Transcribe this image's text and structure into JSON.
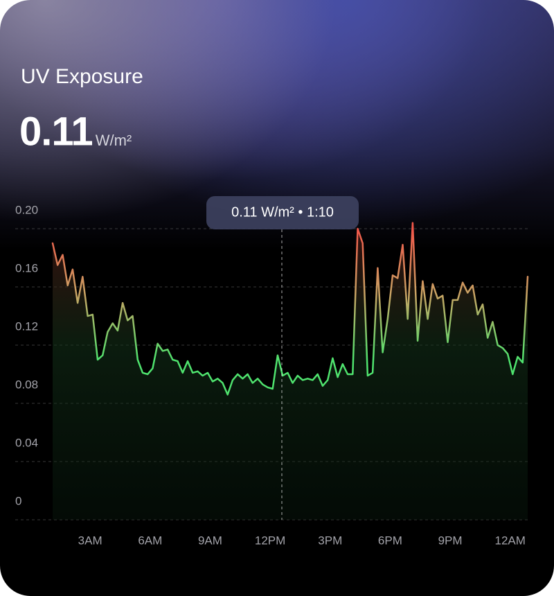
{
  "chart_data": {
    "type": "line",
    "title": "UV Exposure",
    "value": "0.11",
    "unit": "W/m²",
    "tooltip": "0.11 W/m² • 1:10",
    "x": [
      1.125,
      1.375,
      1.625,
      1.875,
      2.125,
      2.375,
      2.625,
      2.875,
      3.125,
      3.375,
      3.625,
      3.875,
      4.125,
      4.375,
      4.625,
      4.875,
      5.125,
      5.375,
      5.625,
      5.875,
      6.125,
      6.375,
      6.625,
      6.875,
      7.125,
      7.375,
      7.625,
      7.875,
      8.125,
      8.375,
      8.625,
      8.875,
      9.125,
      9.375,
      9.625,
      9.875,
      10.125,
      10.375,
      10.625,
      10.875,
      11.125,
      11.375,
      11.625,
      11.875,
      12.125,
      12.375,
      12.625,
      12.875,
      13.125,
      13.375,
      13.625,
      13.875,
      14.125,
      14.375,
      14.625,
      14.875,
      15.125,
      15.375,
      15.625,
      15.875,
      16.125,
      16.375,
      16.625,
      16.875,
      17.125,
      17.375,
      17.625,
      17.875,
      18.125,
      18.375,
      18.625,
      18.875,
      19.125,
      19.375,
      19.625,
      19.875,
      20.125,
      20.375,
      20.625,
      20.875,
      21.125,
      21.375,
      21.625,
      21.875,
      22.125,
      22.375,
      22.625,
      22.875,
      23.125,
      23.375,
      23.625,
      23.875,
      24.125,
      24.375,
      24.625,
      24.875
    ],
    "series": [
      {
        "name": "UV Exposure",
        "color": "#4fe36e",
        "peak_color": "#f2574a",
        "values": [
          0.19,
          0.175,
          0.182,
          0.161,
          0.172,
          0.149,
          0.167,
          0.14,
          0.141,
          0.11,
          0.113,
          0.129,
          0.135,
          0.13,
          0.149,
          0.137,
          0.14,
          0.11,
          0.101,
          0.1,
          0.104,
          0.121,
          0.116,
          0.117,
          0.11,
          0.109,
          0.101,
          0.109,
          0.101,
          0.102,
          0.099,
          0.101,
          0.095,
          0.097,
          0.094,
          0.086,
          0.096,
          0.1,
          0.097,
          0.1,
          0.094,
          0.097,
          0.093,
          0.091,
          0.09,
          0.113,
          0.099,
          0.101,
          0.094,
          0.099,
          0.096,
          0.097,
          0.096,
          0.1,
          0.092,
          0.096,
          0.111,
          0.098,
          0.107,
          0.1,
          0.1,
          0.2,
          0.19,
          0.099,
          0.101,
          0.173,
          0.115,
          0.138,
          0.168,
          0.166,
          0.189,
          0.138,
          0.204,
          0.123,
          0.164,
          0.138,
          0.162,
          0.152,
          0.154,
          0.122,
          0.151,
          0.151,
          0.163,
          0.156,
          0.161,
          0.141,
          0.148,
          0.125,
          0.136,
          0.12,
          0.118,
          0.114,
          0.1,
          0.112,
          0.108,
          0.167
        ]
      }
    ],
    "xlim": [
      1,
      25
    ],
    "xticks": [
      {
        "value": 3,
        "label": "3AM"
      },
      {
        "value": 6,
        "label": "6AM"
      },
      {
        "value": 9,
        "label": "9AM"
      },
      {
        "value": 12,
        "label": "12PM"
      },
      {
        "value": 15,
        "label": "3PM"
      },
      {
        "value": 18,
        "label": "6PM"
      },
      {
        "value": 21,
        "label": "9PM"
      },
      {
        "value": 24,
        "label": "12AM"
      }
    ],
    "ylim": [
      0,
      0.2
    ],
    "yticks": [
      0,
      0.04,
      0.08,
      0.12,
      0.16,
      {
        "value": 0.2,
        "label": "0.20"
      }
    ],
    "grid": true
  }
}
